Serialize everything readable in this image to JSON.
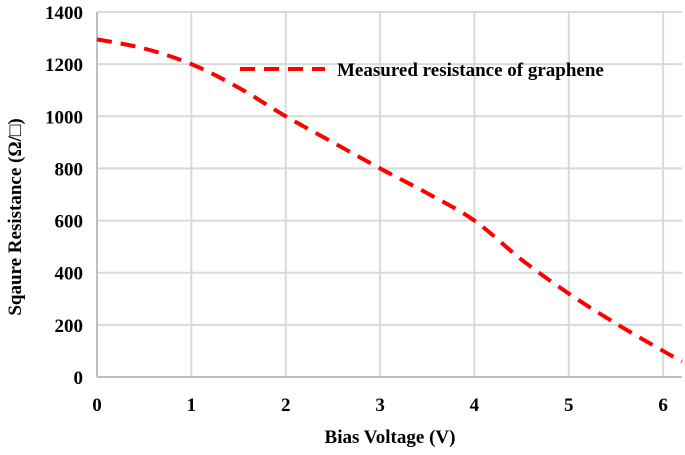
{
  "chart_data": {
    "type": "line",
    "xlabel": "Bias Voltage (V)",
    "ylabel": "Sqaure Resistance (Ω/□)",
    "xlim": [
      0,
      6.2
    ],
    "ylim": [
      0,
      1400
    ],
    "x_ticks": [
      "0",
      "1",
      "2",
      "3",
      "4",
      "5",
      "6"
    ],
    "y_ticks": [
      "0",
      "200",
      "400",
      "600",
      "800",
      "1000",
      "1200",
      "1400"
    ],
    "grid": true,
    "legend_position": "top-right",
    "series": [
      {
        "name": "Measured resistance of graphene",
        "color": "#ff0000",
        "style": "dashed",
        "x": [
          0,
          0.5,
          1,
          1.5,
          2,
          2.5,
          3,
          3.5,
          4,
          4.5,
          5,
          5.5,
          6,
          6.2
        ],
        "y": [
          1295,
          1260,
          1200,
          1110,
          1000,
          900,
          800,
          705,
          600,
          450,
          320,
          205,
          100,
          60
        ]
      }
    ]
  }
}
